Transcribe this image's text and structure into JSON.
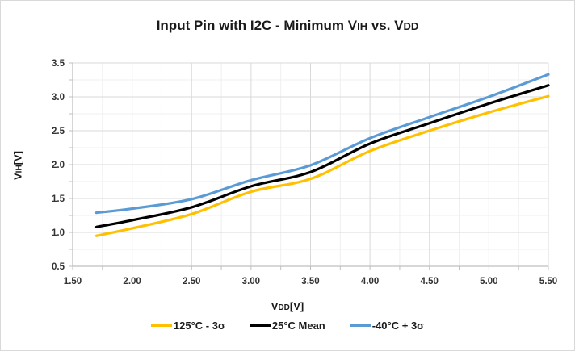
{
  "chart_data": {
    "type": "line",
    "title": "Input Pin with I2C - Minimum VIH vs. VDD",
    "title_parts": {
      "main": "Input Pin with I2C - Minimum V",
      "sub1": "IH",
      "mid": " vs. V",
      "sub2": "DD"
    },
    "xlabel": "VDD[V]",
    "xlabel_parts": {
      "main": "V",
      "sub": "DD",
      "unit": "[V]"
    },
    "ylabel": "VIH[V]",
    "ylabel_parts": {
      "main": "V",
      "sub": "IH",
      "unit": "[V]"
    },
    "xlim": [
      1.5,
      5.5
    ],
    "ylim": [
      0.5,
      3.5
    ],
    "x_ticks": [
      "1.50",
      "2.00",
      "2.50",
      "3.00",
      "3.50",
      "4.00",
      "4.50",
      "5.00",
      "5.50"
    ],
    "y_ticks": [
      "0.5",
      "1.0",
      "1.5",
      "2.0",
      "2.5",
      "3.0",
      "3.5"
    ],
    "grid": {
      "major": true,
      "minor": true
    },
    "legend_position": "bottom",
    "x": [
      1.7,
      2.0,
      2.5,
      3.0,
      3.5,
      4.0,
      4.5,
      5.0,
      5.5
    ],
    "series": [
      {
        "name": "125°C - 3σ",
        "color": "#FFC000",
        "values": [
          0.95,
          1.06,
          1.27,
          1.6,
          1.79,
          2.2,
          2.5,
          2.77,
          3.01
        ]
      },
      {
        "name": "25°C Mean",
        "color": "#000000",
        "values": [
          1.08,
          1.18,
          1.37,
          1.68,
          1.89,
          2.31,
          2.61,
          2.9,
          3.17
        ]
      },
      {
        "name": "-40°C + 3σ",
        "color": "#5B9BD5",
        "values": [
          1.29,
          1.35,
          1.49,
          1.77,
          1.99,
          2.39,
          2.7,
          3.0,
          3.33
        ]
      }
    ]
  }
}
